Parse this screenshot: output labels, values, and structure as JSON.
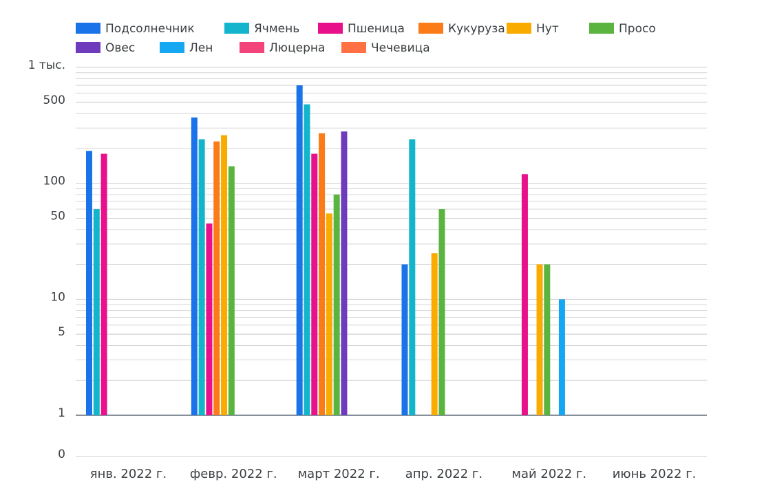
{
  "chart_data": {
    "type": "bar",
    "log_scale": true,
    "grid": true,
    "categories": [
      "янв. 2022 г.",
      "февр. 2022 г.",
      "март 2022 г.",
      "апр. 2022 г.",
      "май 2022 г.",
      "июнь 2022 г."
    ],
    "series": [
      {
        "name": "Подсолнечник",
        "color": "#1a73e8",
        "values": [
          190,
          370,
          700,
          20,
          null,
          null
        ]
      },
      {
        "name": "Ячмень",
        "color": "#12b5cb",
        "values": [
          60,
          240,
          480,
          240,
          null,
          null
        ]
      },
      {
        "name": "Пшеница",
        "color": "#e8108b",
        "values": [
          180,
          45,
          180,
          null,
          120,
          null
        ]
      },
      {
        "name": "Кукуруза",
        "color": "#fa7b17",
        "values": [
          null,
          230,
          270,
          null,
          null,
          null
        ]
      },
      {
        "name": "Нут",
        "color": "#f9ab00",
        "values": [
          null,
          260,
          55,
          25,
          20,
          null
        ]
      },
      {
        "name": "Просо",
        "color": "#5bb43f",
        "values": [
          null,
          140,
          80,
          60,
          20,
          null
        ]
      },
      {
        "name": "Овес",
        "color": "#6f3bbd",
        "values": [
          null,
          null,
          280,
          null,
          null,
          null
        ]
      },
      {
        "name": "Лен",
        "color": "#16a7f2",
        "values": [
          null,
          null,
          null,
          null,
          10,
          null
        ]
      },
      {
        "name": "Люцерна",
        "color": "#f2437a",
        "values": [
          null,
          null,
          null,
          null,
          null,
          null
        ]
      },
      {
        "name": "Чечевица",
        "color": "#ff7043",
        "values": [
          null,
          null,
          null,
          null,
          null,
          null
        ]
      }
    ],
    "ylim": [
      1,
      1000
    ],
    "yticks": [
      0,
      1,
      5,
      10,
      50,
      100,
      500,
      {
        "value": 1000,
        "label": "1 тыс."
      }
    ]
  }
}
